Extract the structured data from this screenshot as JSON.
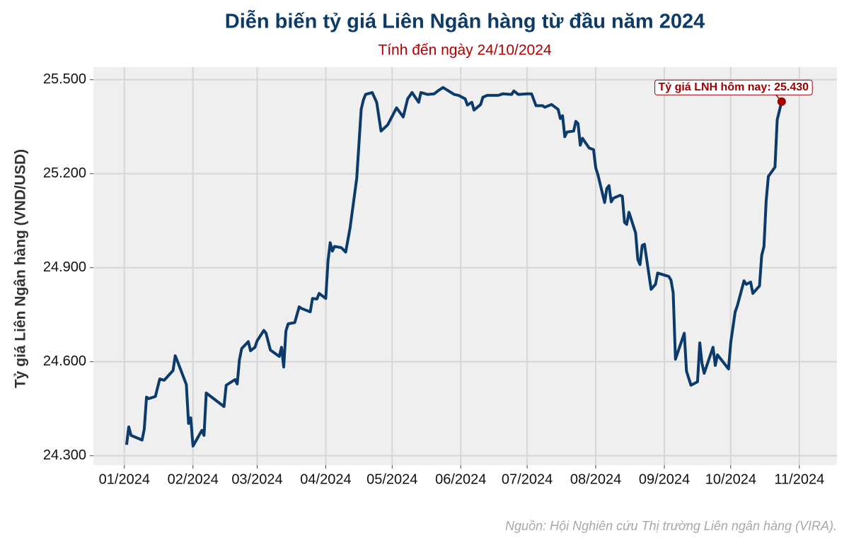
{
  "chart_data": {
    "type": "line",
    "title": "Diễn biến tỷ giá Liên Ngân hàng từ đầu năm 2024",
    "subtitle": "Tính đến ngày 24/10/2024",
    "y_label": "Tỷ giá Liên Ngân hàng (VND/USD)",
    "source": "Nguồn: Hội Nghiên cứu Thị trường Liên ngân hàng (VIRA).",
    "annotation": "Tỷ giá LNH hôm nay: 25.430",
    "grid": true,
    "xlim": [
      "2023-12-18",
      "2024-11-18"
    ],
    "xticks": [
      {
        "value": "2024-01-01",
        "label": "01/2024"
      },
      {
        "value": "2024-02-01",
        "label": "02/2024"
      },
      {
        "value": "2024-03-01",
        "label": "03/2024"
      },
      {
        "value": "2024-04-01",
        "label": "04/2024"
      },
      {
        "value": "2024-05-01",
        "label": "05/2024"
      },
      {
        "value": "2024-06-01",
        "label": "06/2024"
      },
      {
        "value": "2024-07-01",
        "label": "07/2024"
      },
      {
        "value": "2024-08-01",
        "label": "08/2024"
      },
      {
        "value": "2024-09-01",
        "label": "09/2024"
      },
      {
        "value": "2024-10-01",
        "label": "10/2024"
      },
      {
        "value": "2024-11-01",
        "label": "11/2024"
      }
    ],
    "ylim": [
      24270,
      25540
    ],
    "yticks": [
      {
        "value": 24300,
        "label": "24.300"
      },
      {
        "value": 24600,
        "label": "24.600"
      },
      {
        "value": 24900,
        "label": "24.900"
      },
      {
        "value": 25200,
        "label": "25.200"
      },
      {
        "value": 25500,
        "label": "25.500"
      }
    ],
    "x": [
      "2024-01-02",
      "2024-01-03",
      "2024-01-04",
      "2024-01-09",
      "2024-01-10",
      "2024-01-11",
      "2024-01-12",
      "2024-01-15",
      "2024-01-17",
      "2024-01-19",
      "2024-01-23",
      "2024-01-24",
      "2024-01-25",
      "2024-01-29",
      "2024-01-30",
      "2024-01-31",
      "2024-02-01",
      "2024-02-05",
      "2024-02-06",
      "2024-02-07",
      "2024-02-15",
      "2024-02-16",
      "2024-02-20",
      "2024-02-21",
      "2024-02-22",
      "2024-02-23",
      "2024-02-26",
      "2024-02-27",
      "2024-02-29",
      "2024-03-01",
      "2024-03-04",
      "2024-03-05",
      "2024-03-07",
      "2024-03-11",
      "2024-03-12",
      "2024-03-13",
      "2024-03-14",
      "2024-03-15",
      "2024-03-18",
      "2024-03-20",
      "2024-03-21",
      "2024-03-25",
      "2024-03-26",
      "2024-03-28",
      "2024-03-29",
      "2024-04-01",
      "2024-04-02",
      "2024-04-03",
      "2024-04-04",
      "2024-04-05",
      "2024-04-08",
      "2024-04-10",
      "2024-04-12",
      "2024-04-15",
      "2024-04-17",
      "2024-04-18",
      "2024-04-19",
      "2024-04-22",
      "2024-04-24",
      "2024-04-26",
      "2024-04-29",
      "2024-05-03",
      "2024-05-06",
      "2024-05-08",
      "2024-05-10",
      "2024-05-13",
      "2024-05-14",
      "2024-05-17",
      "2024-05-20",
      "2024-05-22",
      "2024-05-24",
      "2024-05-27",
      "2024-05-29",
      "2024-05-31",
      "2024-06-03",
      "2024-06-04",
      "2024-06-06",
      "2024-06-07",
      "2024-06-10",
      "2024-06-11",
      "2024-06-13",
      "2024-06-18",
      "2024-06-20",
      "2024-06-24",
      "2024-06-25",
      "2024-06-27",
      "2024-07-01",
      "2024-07-03",
      "2024-07-05",
      "2024-07-08",
      "2024-07-09",
      "2024-07-12",
      "2024-07-15",
      "2024-07-16",
      "2024-07-17",
      "2024-07-18",
      "2024-07-19",
      "2024-07-22",
      "2024-07-23",
      "2024-07-24",
      "2024-07-25",
      "2024-07-26",
      "2024-07-29",
      "2024-07-31",
      "2024-08-01",
      "2024-08-02",
      "2024-08-05",
      "2024-08-06",
      "2024-08-07",
      "2024-08-08",
      "2024-08-09",
      "2024-08-12",
      "2024-08-13",
      "2024-08-14",
      "2024-08-15",
      "2024-08-16",
      "2024-08-19",
      "2024-08-20",
      "2024-08-21",
      "2024-08-22",
      "2024-08-23",
      "2024-08-26",
      "2024-08-28",
      "2024-08-29",
      "2024-09-03",
      "2024-09-04",
      "2024-09-05",
      "2024-09-06",
      "2024-09-10",
      "2024-09-11",
      "2024-09-13",
      "2024-09-16",
      "2024-09-17",
      "2024-09-18",
      "2024-09-19",
      "2024-09-23",
      "2024-09-24",
      "2024-09-25",
      "2024-09-30",
      "2024-10-01",
      "2024-10-03",
      "2024-10-04",
      "2024-10-07",
      "2024-10-08",
      "2024-10-10",
      "2024-10-11",
      "2024-10-14",
      "2024-10-15",
      "2024-10-16",
      "2024-10-17",
      "2024-10-18",
      "2024-10-21",
      "2024-10-22",
      "2024-10-24"
    ],
    "series": [
      {
        "name": "Tỷ giá LNH",
        "color": "#0b3a6b",
        "values": [
          24335,
          24392,
          24365,
          24350,
          24385,
          24487,
          24482,
          24489,
          24545,
          24541,
          24572,
          24619,
          24601,
          24527,
          24403,
          24421,
          24331,
          24381,
          24365,
          24500,
          24457,
          24525,
          24543,
          24529,
          24606,
          24642,
          24664,
          24635,
          24646,
          24667,
          24700,
          24691,
          24637,
          24617,
          24646,
          24583,
          24698,
          24721,
          24725,
          24775,
          24770,
          24759,
          24802,
          24800,
          24818,
          24802,
          24921,
          24980,
          24953,
          24968,
          24964,
          24950,
          25027,
          25185,
          25405,
          25435,
          25453,
          25459,
          25428,
          25336,
          25356,
          25410,
          25381,
          25439,
          25459,
          25428,
          25459,
          25453,
          25455,
          25466,
          25475,
          25462,
          25453,
          25450,
          25439,
          25419,
          25428,
          25403,
          25421,
          25444,
          25450,
          25450,
          25455,
          25453,
          25464,
          25453,
          25455,
          25455,
          25417,
          25417,
          25412,
          25421,
          25405,
          25376,
          25385,
          25318,
          25333,
          25336,
          25367,
          25360,
          25291,
          25313,
          25282,
          25277,
          25218,
          25196,
          25108,
          25153,
          25162,
          25110,
          25122,
          25131,
          25128,
          25045,
          25038,
          25077,
          25011,
          24926,
          24910,
          24971,
          24975,
          24831,
          24847,
          24883,
          24872,
          24860,
          24820,
          24608,
          24691,
          24570,
          24525,
          24536,
          24660,
          24595,
          24563,
          24646,
          24588,
          24622,
          24577,
          24662,
          24759,
          24779,
          24858,
          24847,
          24854,
          24818,
          24842,
          24939,
          24968,
          25113,
          25191,
          25221,
          25372,
          25430
        ]
      }
    ],
    "annotation_color": "#a00000"
  }
}
